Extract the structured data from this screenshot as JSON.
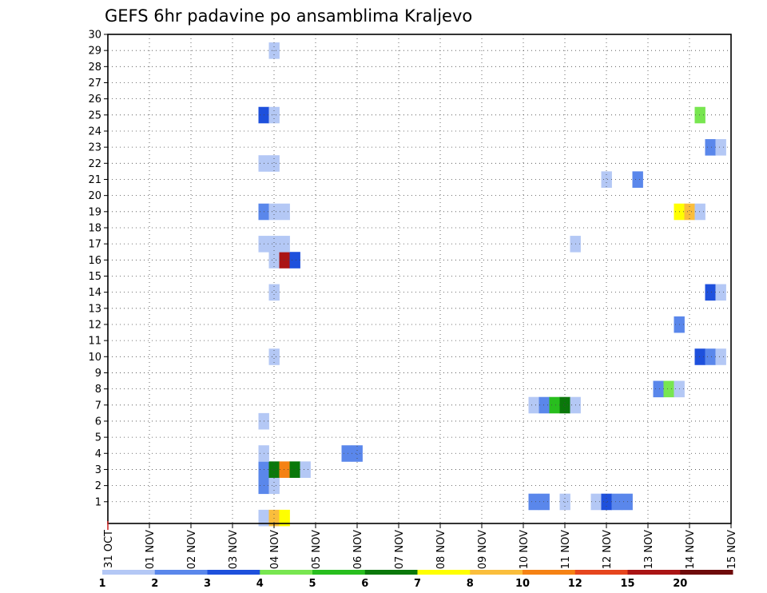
{
  "chart_data": {
    "type": "heatmap",
    "title": "GEFS 6hr padavine po ansamblima Kraljevo",
    "x_tick_labels": [
      "31 OCT",
      "01 NOV",
      "02 NOV",
      "03 NOV",
      "04 NOV",
      "05 NOV",
      "06 NOV",
      "07 NOV",
      "08 NOV",
      "09 NOV",
      "10 NOV",
      "11 NOV",
      "12 NOV",
      "13 NOV",
      "14 NOV",
      "15 NOV"
    ],
    "x_range_days": [
      0,
      15
    ],
    "y_range_members": [
      0,
      30
    ],
    "y_tick_labels": [
      "1",
      "2",
      "3",
      "4",
      "5",
      "6",
      "7",
      "8",
      "9",
      "10",
      "11",
      "12",
      "13",
      "14",
      "15",
      "16",
      "17",
      "18",
      "19",
      "20",
      "21",
      "22",
      "23",
      "24",
      "25",
      "26",
      "27",
      "28",
      "29",
      "30"
    ],
    "grid": true,
    "colorbar": {
      "colors": [
        "#b4c8f5",
        "#5a87eb",
        "#1e50dc",
        "#78e650",
        "#28be1e",
        "#0a780a",
        "#ffff00",
        "#fabe3c",
        "#f58214",
        "#e6461e",
        "#aa1414",
        "#6e0a0a"
      ],
      "labels": [
        "1",
        "2",
        "3",
        "4",
        "5",
        "6",
        "7",
        "8",
        "10",
        "12",
        "15",
        "20"
      ],
      "position": "bottom"
    },
    "cells": [
      {
        "member": 0,
        "day": 3.75,
        "bin": 0
      },
      {
        "member": 0,
        "day": 4.0,
        "bin": 7
      },
      {
        "member": 0,
        "day": 4.25,
        "bin": 6
      },
      {
        "member": 1,
        "day": 10.25,
        "bin": 1
      },
      {
        "member": 1,
        "day": 10.5,
        "bin": 1
      },
      {
        "member": 1,
        "day": 11.0,
        "bin": 0
      },
      {
        "member": 1,
        "day": 11.75,
        "bin": 0
      },
      {
        "member": 1,
        "day": 12.0,
        "bin": 2
      },
      {
        "member": 1,
        "day": 12.25,
        "bin": 1
      },
      {
        "member": 1,
        "day": 12.5,
        "bin": 1
      },
      {
        "member": 2,
        "day": 3.75,
        "bin": 1
      },
      {
        "member": 2,
        "day": 4.0,
        "bin": 0
      },
      {
        "member": 3,
        "day": 3.75,
        "bin": 1
      },
      {
        "member": 3,
        "day": 4.0,
        "bin": 5
      },
      {
        "member": 3,
        "day": 4.25,
        "bin": 8
      },
      {
        "member": 3,
        "day": 4.5,
        "bin": 5
      },
      {
        "member": 3,
        "day": 4.75,
        "bin": 0
      },
      {
        "member": 4,
        "day": 3.75,
        "bin": 0
      },
      {
        "member": 4,
        "day": 5.75,
        "bin": 1
      },
      {
        "member": 4,
        "day": 6.0,
        "bin": 1
      },
      {
        "member": 6,
        "day": 3.75,
        "bin": 0
      },
      {
        "member": 7,
        "day": 10.25,
        "bin": 0
      },
      {
        "member": 7,
        "day": 10.5,
        "bin": 1
      },
      {
        "member": 7,
        "day": 10.75,
        "bin": 4
      },
      {
        "member": 7,
        "day": 11.0,
        "bin": 5
      },
      {
        "member": 7,
        "day": 11.25,
        "bin": 0
      },
      {
        "member": 8,
        "day": 13.25,
        "bin": 1
      },
      {
        "member": 8,
        "day": 13.5,
        "bin": 3
      },
      {
        "member": 8,
        "day": 13.75,
        "bin": 0
      },
      {
        "member": 10,
        "day": 4.0,
        "bin": 0
      },
      {
        "member": 10,
        "day": 14.25,
        "bin": 2
      },
      {
        "member": 10,
        "day": 14.5,
        "bin": 1
      },
      {
        "member": 10,
        "day": 14.75,
        "bin": 0
      },
      {
        "member": 12,
        "day": 13.75,
        "bin": 1
      },
      {
        "member": 14,
        "day": 4.0,
        "bin": 0
      },
      {
        "member": 14,
        "day": 14.5,
        "bin": 2
      },
      {
        "member": 14,
        "day": 14.75,
        "bin": 0
      },
      {
        "member": 16,
        "day": 4.0,
        "bin": 0
      },
      {
        "member": 16,
        "day": 4.25,
        "bin": 10
      },
      {
        "member": 16,
        "day": 4.5,
        "bin": 2
      },
      {
        "member": 17,
        "day": 3.75,
        "bin": 0
      },
      {
        "member": 17,
        "day": 4.0,
        "bin": 0
      },
      {
        "member": 17,
        "day": 4.25,
        "bin": 0
      },
      {
        "member": 17,
        "day": 11.25,
        "bin": 0
      },
      {
        "member": 19,
        "day": 3.75,
        "bin": 1
      },
      {
        "member": 19,
        "day": 4.0,
        "bin": 0
      },
      {
        "member": 19,
        "day": 4.25,
        "bin": 0
      },
      {
        "member": 19,
        "day": 13.75,
        "bin": 6
      },
      {
        "member": 19,
        "day": 14.0,
        "bin": 7
      },
      {
        "member": 19,
        "day": 14.25,
        "bin": 0
      },
      {
        "member": 21,
        "day": 12.0,
        "bin": 0
      },
      {
        "member": 21,
        "day": 12.75,
        "bin": 1
      },
      {
        "member": 22,
        "day": 3.75,
        "bin": 0
      },
      {
        "member": 22,
        "day": 4.0,
        "bin": 0
      },
      {
        "member": 23,
        "day": 14.5,
        "bin": 1
      },
      {
        "member": 23,
        "day": 14.75,
        "bin": 0
      },
      {
        "member": 25,
        "day": 3.75,
        "bin": 2
      },
      {
        "member": 25,
        "day": 4.0,
        "bin": 0
      },
      {
        "member": 25,
        "day": 14.25,
        "bin": 3
      },
      {
        "member": 29,
        "day": 4.0,
        "bin": 0
      }
    ]
  }
}
